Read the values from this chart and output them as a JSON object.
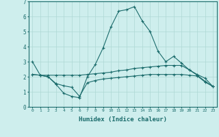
{
  "xlabel": "Humidex (Indice chaleur)",
  "xlim": [
    -0.5,
    23.5
  ],
  "ylim": [
    0,
    7
  ],
  "xticks": [
    0,
    1,
    2,
    3,
    4,
    5,
    6,
    7,
    8,
    9,
    10,
    11,
    12,
    13,
    14,
    15,
    16,
    17,
    18,
    19,
    20,
    21,
    22,
    23
  ],
  "yticks": [
    0,
    1,
    2,
    3,
    4,
    5,
    6,
    7
  ],
  "bg_color": "#ceeeed",
  "line_color": "#1a6b6b",
  "grid_color": "#aed8d4",
  "line1_x": [
    0,
    1,
    2,
    3,
    4,
    5,
    6,
    7,
    8,
    9,
    10,
    11,
    12,
    13,
    14,
    15,
    16,
    17,
    18,
    19,
    20,
    21,
    22,
    23
  ],
  "line1_y": [
    3.0,
    2.1,
    2.0,
    1.5,
    0.9,
    0.7,
    0.6,
    2.0,
    2.8,
    3.9,
    5.3,
    6.35,
    6.45,
    6.65,
    5.7,
    5.0,
    3.7,
    3.0,
    3.35,
    2.9,
    2.45,
    2.1,
    1.7,
    1.35
  ],
  "line2_x": [
    0,
    1,
    2,
    3,
    4,
    5,
    6,
    7,
    8,
    9,
    10,
    11,
    12,
    13,
    14,
    15,
    16,
    17,
    18,
    19,
    20,
    21,
    22,
    23
  ],
  "line2_y": [
    2.15,
    2.1,
    2.1,
    2.1,
    2.1,
    2.1,
    2.1,
    2.15,
    2.2,
    2.25,
    2.3,
    2.4,
    2.45,
    2.55,
    2.6,
    2.65,
    2.7,
    2.75,
    2.75,
    2.75,
    2.45,
    2.15,
    1.9,
    1.35
  ],
  "line3_x": [
    0,
    1,
    2,
    3,
    4,
    5,
    6,
    7,
    8,
    9,
    10,
    11,
    12,
    13,
    14,
    15,
    16,
    17,
    18,
    19,
    20,
    21,
    22,
    23
  ],
  "line3_y": [
    2.15,
    2.1,
    2.0,
    1.55,
    1.4,
    1.3,
    0.7,
    1.6,
    1.75,
    1.85,
    1.9,
    1.95,
    2.0,
    2.05,
    2.1,
    2.15,
    2.15,
    2.15,
    2.15,
    2.15,
    2.1,
    2.05,
    1.65,
    1.35
  ]
}
